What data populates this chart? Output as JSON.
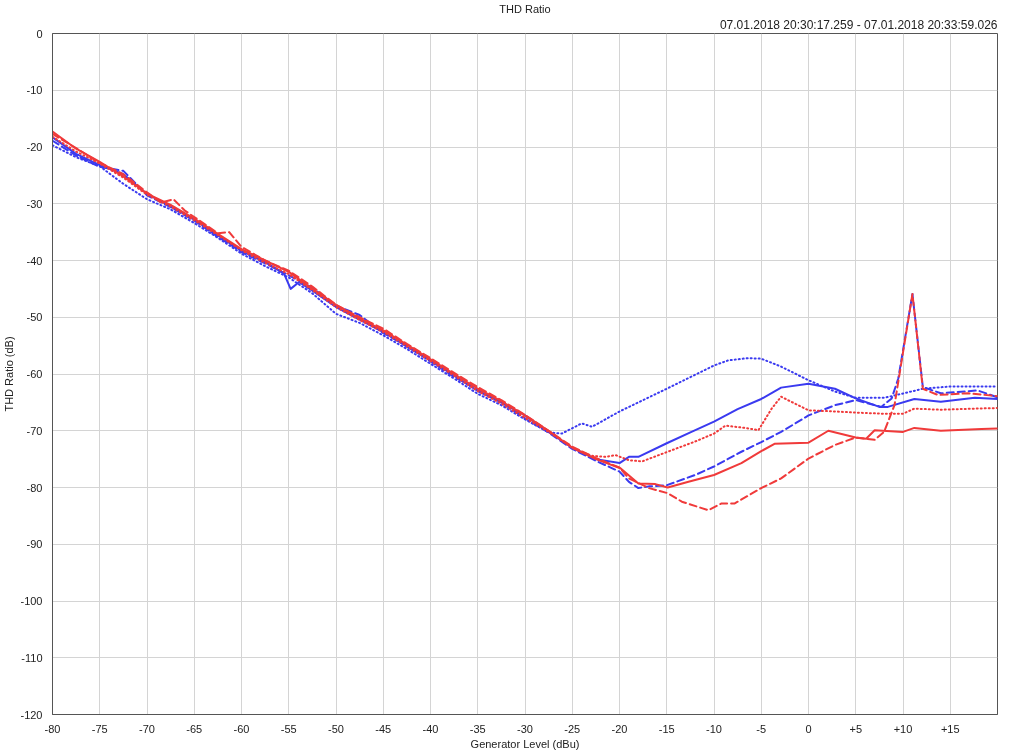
{
  "chart_data": {
    "type": "line",
    "title": "THD Ratio",
    "subtitle": "07.01.2018 20:30:17.259 - 07.01.2018 20:33:59.026",
    "xlabel": "Generator Level (dBu)",
    "ylabel": "THD Ratio (dB)",
    "xlim": [
      -80,
      20
    ],
    "ylim": [
      -120,
      0
    ],
    "xticks": [
      -80,
      -75,
      -70,
      -65,
      -60,
      -55,
      -50,
      -45,
      -40,
      -35,
      -30,
      -25,
      -20,
      -15,
      -10,
      -5,
      0,
      {
        "value": 5,
        "label": "+5"
      },
      {
        "value": 10,
        "label": "+10"
      },
      {
        "value": 15,
        "label": "+15"
      }
    ],
    "yticks": [
      0,
      -10,
      -20,
      -30,
      -40,
      -50,
      -60,
      -70,
      -80,
      -90,
      -100,
      -110,
      -120
    ],
    "grid": true,
    "series": [
      {
        "color": "#3a3af0",
        "line_style": "solid",
        "x": [
          -80,
          -77.5,
          -75,
          -72.5,
          -70,
          -67.5,
          -65,
          -62.5,
          -60,
          -57.5,
          -55.5,
          -54.8,
          -53.9,
          -52.5,
          -50,
          -47.5,
          -45,
          -42.5,
          -40,
          -37.5,
          -35,
          -32.5,
          -30,
          -27.5,
          -25,
          -22.5,
          -20,
          -19,
          -18,
          -15,
          -12.5,
          -10,
          -7.5,
          -5,
          -2.9,
          0,
          2.8,
          5,
          7.5,
          8.4,
          11.2,
          14,
          17.6,
          20
        ],
        "values": [
          -18.3,
          -21.2,
          -23.2,
          -24.8,
          -28.3,
          -30.4,
          -32.8,
          -35.6,
          -38.3,
          -40.3,
          -42.3,
          -45,
          -43.8,
          -45.3,
          -48.2,
          -50.4,
          -52.6,
          -55.2,
          -57.6,
          -60.3,
          -63,
          -65,
          -67.3,
          -70.2,
          -73,
          -75,
          -75.7,
          -74.6,
          -74.6,
          -72.2,
          -70.3,
          -68.4,
          -66.2,
          -64.4,
          -62.4,
          -61.7,
          -62.6,
          -64.3,
          -65.8,
          -65.8,
          -64.4,
          -64.9,
          -64.2,
          -64.4
        ]
      },
      {
        "color": "#3a3af0",
        "line_style": "dashed",
        "x": [
          -80,
          -77.5,
          -75,
          -72.5,
          -70,
          -67.5,
          -65,
          -62.5,
          -60,
          -57.5,
          -55,
          -52.5,
          -50,
          -47.5,
          -45,
          -42.5,
          -40,
          -37.5,
          -35,
          -32.5,
          -30,
          -27.5,
          -25,
          -22.5,
          -20,
          -19,
          -18,
          -16.9,
          -15,
          -12,
          -10,
          -7.1,
          -5,
          -2.9,
          0,
          2.8,
          5,
          7.7,
          8.8,
          9.5,
          11,
          12.1,
          14,
          17.9,
          20
        ],
        "values": [
          -18.9,
          -21.5,
          -23.5,
          -24.2,
          -28.5,
          -30.6,
          -33,
          -35.8,
          -38.5,
          -40.5,
          -42.6,
          -44.8,
          -48,
          -49.6,
          -52.8,
          -55,
          -57.8,
          -60.5,
          -62.8,
          -65,
          -67.8,
          -70.3,
          -73.2,
          -75.3,
          -77.2,
          -79,
          -80.1,
          -79.8,
          -79.6,
          -77.8,
          -76.3,
          -73.7,
          -72,
          -70.2,
          -67.3,
          -65.5,
          -64.6,
          -65.8,
          -64.3,
          -60.8,
          -45.9,
          -62.3,
          -63.4,
          -62.9,
          -64.1
        ]
      },
      {
        "color": "#3a3af0",
        "line_style": "dotted",
        "x": [
          -80,
          -77.5,
          -75,
          -72.5,
          -70,
          -67.5,
          -65,
          -62.5,
          -60,
          -57.5,
          -55,
          -52.5,
          -50,
          -47.5,
          -45,
          -42.5,
          -40,
          -37.5,
          -35,
          -32.5,
          -30,
          -27.5,
          -26.1,
          -24,
          -22.9,
          -20,
          -15,
          -10,
          -8.5,
          -6.4,
          -5,
          -2.9,
          0,
          2.8,
          5,
          8,
          10.1,
          12.1,
          15,
          20
        ],
        "values": [
          -19.7,
          -21.8,
          -23.4,
          -26.5,
          -29.2,
          -31,
          -33.4,
          -36,
          -38.8,
          -41,
          -43,
          -45.8,
          -49.4,
          -51,
          -53.2,
          -55.6,
          -58.2,
          -60.8,
          -63.5,
          -65.5,
          -68,
          -70.3,
          -70.5,
          -68.7,
          -69.3,
          -66.6,
          -62.6,
          -58.5,
          -57.6,
          -57.2,
          -57.3,
          -58.7,
          -61.1,
          -63.1,
          -64.2,
          -64.2,
          -63.4,
          -62.6,
          -62.2,
          -62.2
        ]
      },
      {
        "color": "#f03a3a",
        "line_style": "solid",
        "x": [
          -80,
          -77.5,
          -75,
          -72.5,
          -70,
          -67.5,
          -65,
          -62.5,
          -60,
          -57.5,
          -55,
          -52.5,
          -50,
          -47.5,
          -45,
          -42.5,
          -40,
          -37.5,
          -35,
          -32.5,
          -30,
          -27.5,
          -25,
          -22.5,
          -19.9,
          -18,
          -16.2,
          -14.9,
          -12.7,
          -10,
          -7.1,
          -5,
          -3.6,
          0,
          2.1,
          5,
          6.1,
          7,
          10,
          11.2,
          14,
          18.3,
          20
        ],
        "values": [
          -17.3,
          -20.3,
          -22.6,
          -25.2,
          -28.2,
          -30.2,
          -32.6,
          -35.3,
          -38,
          -40,
          -42,
          -45,
          -47.8,
          -50.2,
          -52.3,
          -54.8,
          -57.4,
          -60,
          -62.6,
          -64.8,
          -67.3,
          -70,
          -73,
          -75,
          -76.6,
          -79.3,
          -79.4,
          -80,
          -79,
          -77.8,
          -75.7,
          -73.6,
          -72.3,
          -72.1,
          -70,
          -71.2,
          -71.4,
          -69.9,
          -70.2,
          -69.5,
          -70,
          -69.7,
          -69.6
        ]
      },
      {
        "color": "#f03a3a",
        "line_style": "dashed",
        "x": [
          -80,
          -77.5,
          -75,
          -72.5,
          -70,
          -68.5,
          -67.2,
          -66,
          -62.5,
          -61.3,
          -60,
          -57.5,
          -55,
          -52.5,
          -50,
          -47.5,
          -45,
          -42.5,
          -40,
          -37.5,
          -35,
          -32.5,
          -30,
          -27.5,
          -25,
          -22.5,
          -20,
          -19,
          -16.9,
          -14.9,
          -13.4,
          -10.6,
          -9.2,
          -7.8,
          -5,
          -2.9,
          0,
          2.8,
          5,
          7,
          8,
          9.1,
          11,
          12.1,
          13.7,
          16.9,
          20
        ],
        "values": [
          -17.7,
          -20.2,
          -22.8,
          -24.8,
          -28,
          -29.8,
          -29.2,
          -31.2,
          -35.2,
          -35,
          -37.6,
          -40,
          -41.8,
          -44.6,
          -47.8,
          -50,
          -52,
          -54.7,
          -57.2,
          -59.8,
          -62.3,
          -64.6,
          -67.2,
          -70,
          -72.8,
          -74.8,
          -76.5,
          -78.4,
          -80.1,
          -81,
          -82.5,
          -84,
          -82.8,
          -82.8,
          -80.1,
          -78.4,
          -74.9,
          -72.5,
          -71.2,
          -71.6,
          -70.2,
          -65.5,
          -45.9,
          -62.6,
          -63.7,
          -63.4,
          -63.9
        ]
      },
      {
        "color": "#f03a3a",
        "line_style": "dotted",
        "x": [
          -80,
          -77.5,
          -75,
          -72.5,
          -70,
          -67.5,
          -65,
          -62.5,
          -60,
          -57.5,
          -55,
          -52.5,
          -50,
          -47.5,
          -45,
          -42.5,
          -40,
          -37.5,
          -35,
          -32.5,
          -30,
          -27.5,
          -25,
          -23,
          -21.5,
          -20.4,
          -19,
          -17.6,
          -14.9,
          -12,
          -10,
          -8.8,
          -6.7,
          -5.3,
          -3.9,
          -2.9,
          0,
          2.8,
          5,
          8,
          10,
          11.2,
          14,
          17.6,
          20
        ],
        "values": [
          -18.2,
          -20.8,
          -22.9,
          -25.4,
          -28.4,
          -30.5,
          -32.9,
          -35.5,
          -38.2,
          -40.4,
          -42.4,
          -45.2,
          -48.2,
          -50.5,
          -52.6,
          -55.1,
          -57.7,
          -60.3,
          -63,
          -65.2,
          -67.7,
          -70.2,
          -73,
          -74.4,
          -74.6,
          -74.3,
          -75.2,
          -75.4,
          -73.7,
          -71.9,
          -70.5,
          -69.1,
          -69.5,
          -69.9,
          -66.1,
          -64,
          -66.4,
          -66.6,
          -66.8,
          -67,
          -67,
          -66.1,
          -66.3,
          -66.1,
          -66
        ]
      }
    ]
  }
}
